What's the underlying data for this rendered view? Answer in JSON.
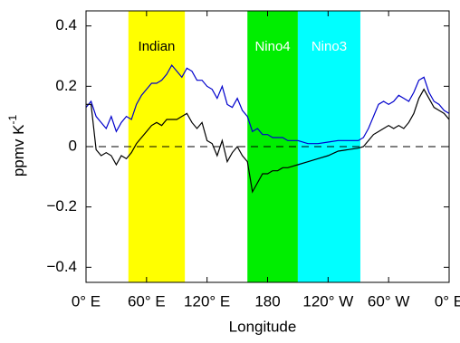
{
  "chart_data": {
    "type": "line",
    "xlabel": "Longitude",
    "ylabel": "ppmv K",
    "ylabel_sup": "-1",
    "x": [
      0,
      5,
      10,
      15,
      20,
      25,
      30,
      35,
      40,
      45,
      50,
      55,
      60,
      65,
      70,
      75,
      80,
      85,
      90,
      95,
      100,
      105,
      110,
      115,
      120,
      125,
      130,
      135,
      140,
      145,
      150,
      155,
      160,
      165,
      170,
      175,
      180,
      185,
      190,
      195,
      200,
      210,
      220,
      230,
      240,
      250,
      260,
      270,
      275,
      280,
      285,
      290,
      295,
      300,
      305,
      310,
      315,
      320,
      325,
      330,
      335,
      340,
      345,
      350,
      355,
      360
    ],
    "series": [
      {
        "color": "#0000cc",
        "values": [
          0.13,
          0.15,
          0.1,
          0.08,
          0.06,
          0.1,
          0.05,
          0.08,
          0.1,
          0.09,
          0.14,
          0.17,
          0.19,
          0.21,
          0.21,
          0.22,
          0.24,
          0.27,
          0.25,
          0.23,
          0.26,
          0.25,
          0.22,
          0.22,
          0.2,
          0.19,
          0.16,
          0.2,
          0.14,
          0.13,
          0.16,
          0.12,
          0.1,
          0.05,
          0.06,
          0.04,
          0.04,
          0.03,
          0.03,
          0.03,
          0.02,
          0.02,
          0.01,
          0.01,
          0.015,
          0.02,
          0.02,
          0.02,
          0.03,
          0.06,
          0.1,
          0.14,
          0.15,
          0.14,
          0.15,
          0.17,
          0.16,
          0.15,
          0.18,
          0.22,
          0.23,
          0.18,
          0.15,
          0.14,
          0.12,
          0.11
        ]
      },
      {
        "color": "#000000",
        "values": [
          0.14,
          0.14,
          -0.01,
          -0.03,
          -0.02,
          -0.03,
          -0.06,
          -0.03,
          -0.04,
          -0.02,
          0.01,
          0.03,
          0.05,
          0.07,
          0.08,
          0.07,
          0.09,
          0.09,
          0.09,
          0.1,
          0.11,
          0.08,
          0.06,
          0.08,
          0.02,
          0.01,
          -0.03,
          0.02,
          -0.05,
          -0.02,
          0.0,
          -0.03,
          -0.05,
          -0.15,
          -0.12,
          -0.09,
          -0.09,
          -0.08,
          -0.08,
          -0.07,
          -0.07,
          -0.06,
          -0.05,
          -0.04,
          -0.03,
          -0.015,
          -0.01,
          -0.005,
          0.0,
          0.02,
          0.04,
          0.05,
          0.06,
          0.07,
          0.06,
          0.07,
          0.06,
          0.08,
          0.11,
          0.16,
          0.19,
          0.16,
          0.13,
          0.12,
          0.11,
          0.09
        ]
      }
    ],
    "regions": [
      {
        "name": "Indian",
        "color": "#ffff00",
        "text_color": "#000000",
        "range": [
          42,
          98
        ]
      },
      {
        "name": "Nino4",
        "color": "#00ee00",
        "text_color": "#ffffff",
        "range": [
          160,
          210
        ]
      },
      {
        "name": "Nino3",
        "color": "#00ffff",
        "text_color": "#ffffff",
        "range": [
          210,
          272
        ]
      }
    ],
    "xlim": [
      0,
      360
    ],
    "ylim": [
      -0.45,
      0.45
    ],
    "xticks": [
      {
        "value": 0,
        "label": "0° E"
      },
      {
        "value": 60,
        "label": "60° E"
      },
      {
        "value": 120,
        "label": "120° E"
      },
      180,
      {
        "value": 240,
        "label": "120° W"
      },
      {
        "value": 300,
        "label": "60° W"
      },
      {
        "value": 360,
        "label": "0° E"
      }
    ],
    "yticks": [
      {
        "value": -0.4,
        "label": "−0.4"
      },
      {
        "value": -0.2,
        "label": "−0.2"
      },
      0,
      0.2,
      0.4
    ],
    "zero_line": 0
  }
}
